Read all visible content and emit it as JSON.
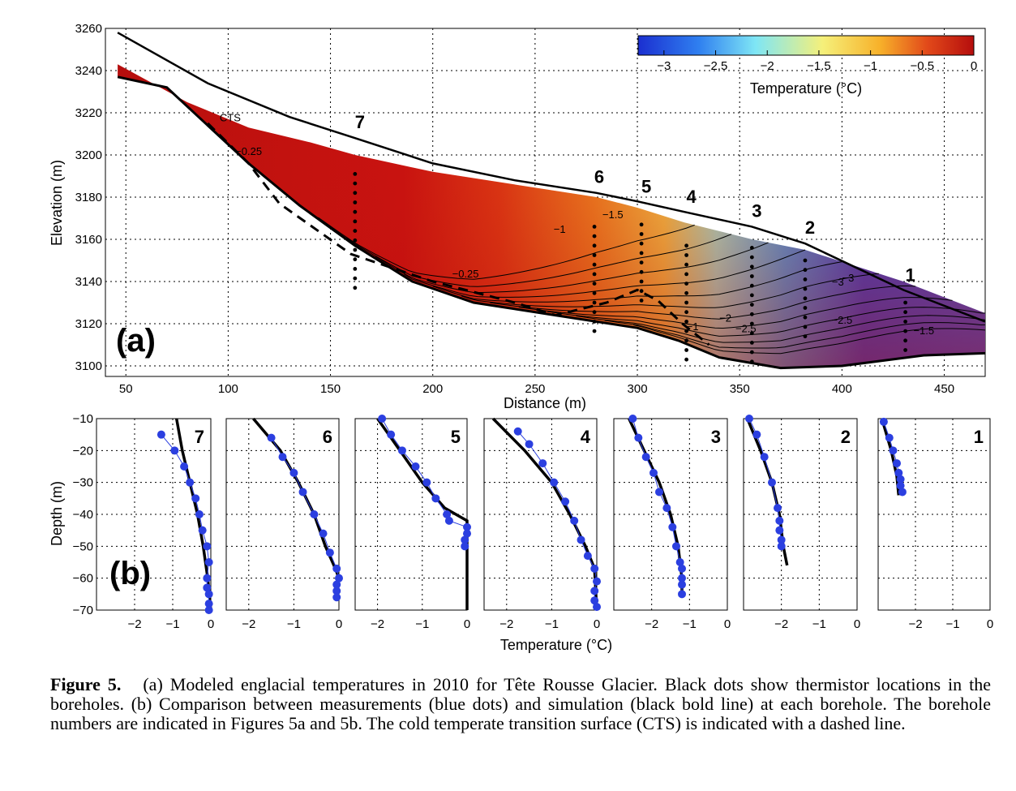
{
  "chart_data": [
    {
      "panel": "(a)",
      "type": "heatmap",
      "description_source": "filled contour section",
      "xlabel": "Distance (m)",
      "ylabel": "Elevation (m)",
      "xlim": [
        40,
        470
      ],
      "ylim": [
        3095,
        3260
      ],
      "xticks": [
        50,
        100,
        150,
        200,
        250,
        300,
        350,
        400,
        450
      ],
      "yticks": [
        3100,
        3120,
        3140,
        3160,
        3180,
        3200,
        3220,
        3240,
        3260
      ],
      "grid": true,
      "colorbar": {
        "label": "Temperature (°C)",
        "ticks": [
          "−3",
          "−2.5",
          "−2",
          "−1.5",
          "−1",
          "−0.5",
          "0"
        ],
        "range": [
          -3.25,
          0
        ],
        "colors": [
          "#1b2fd0",
          "#2f7ff0",
          "#7fe6f5",
          "#f5f07a",
          "#f7b12a",
          "#e24a1a",
          "#b50d0d"
        ],
        "placement": "top-right"
      },
      "contour_labels": [
        "CTS",
        "−0.25",
        "−0.25",
        "−1",
        "−1.5",
        "−2.5",
        "−1.5",
        "−1",
        "−2",
        "−2.5",
        "−3",
        "−3"
      ],
      "surface_2010": [
        [
          46,
          3243
        ],
        [
          80,
          3225
        ],
        [
          110,
          3213
        ],
        [
          140,
          3206
        ],
        [
          162,
          3200
        ],
        [
          200,
          3192
        ],
        [
          240,
          3186
        ],
        [
          280,
          3180
        ],
        [
          300,
          3175
        ],
        [
          323,
          3168
        ],
        [
          356,
          3160
        ],
        [
          382,
          3155
        ],
        [
          430,
          3140
        ],
        [
          470,
          3125
        ]
      ],
      "surface_old": [
        [
          46,
          3258
        ],
        [
          90,
          3234
        ],
        [
          130,
          3218
        ],
        [
          162,
          3208
        ],
        [
          200,
          3196
        ],
        [
          240,
          3188
        ],
        [
          280,
          3182
        ],
        [
          300,
          3178
        ],
        [
          323,
          3173
        ],
        [
          356,
          3166
        ],
        [
          382,
          3158
        ],
        [
          430,
          3136
        ],
        [
          470,
          3121
        ]
      ],
      "bedrock": [
        [
          46,
          3237
        ],
        [
          70,
          3232
        ],
        [
          90,
          3214
        ],
        [
          110,
          3196
        ],
        [
          135,
          3176
        ],
        [
          162,
          3157
        ],
        [
          190,
          3140
        ],
        [
          220,
          3130
        ],
        [
          260,
          3124
        ],
        [
          300,
          3118
        ],
        [
          320,
          3112
        ],
        [
          340,
          3104
        ],
        [
          370,
          3099
        ],
        [
          400,
          3100
        ],
        [
          440,
          3105
        ],
        [
          470,
          3106
        ]
      ],
      "cts_line": [
        [
          90,
          3215
        ],
        [
          110,
          3196
        ],
        [
          125,
          3177
        ],
        [
          160,
          3153
        ],
        [
          200,
          3140
        ],
        [
          240,
          3130
        ],
        [
          260,
          3124
        ],
        [
          285,
          3130
        ],
        [
          300,
          3136
        ],
        [
          310,
          3131
        ],
        [
          322,
          3120
        ],
        [
          335,
          3110
        ]
      ],
      "boreholes": [
        {
          "id": "7",
          "x": 162,
          "top": 3191,
          "bottom": 3136
        },
        {
          "id": "6",
          "x": 279,
          "top": 3166,
          "bottom": 3116
        },
        {
          "id": "5",
          "x": 302,
          "top": 3167,
          "bottom": 3127
        },
        {
          "id": "4",
          "x": 324,
          "top": 3157,
          "bottom": 3103
        },
        {
          "id": "3",
          "x": 356,
          "top": 3156,
          "bottom": 3101
        },
        {
          "id": "2",
          "x": 382,
          "top": 3150,
          "bottom": 3110
        },
        {
          "id": "1",
          "x": 431,
          "top": 3130,
          "bottom": 3105
        }
      ],
      "panel_label": "(a)"
    },
    {
      "panel": "(b)",
      "type": "line",
      "xlabel": "Temperature (°C)",
      "ylabel": "Depth (m)",
      "ylim": [
        -70,
        -10
      ],
      "yticks": [
        "−10",
        "−20",
        "−30",
        "−40",
        "−50",
        "−60",
        "−70"
      ],
      "grid": true,
      "panel_label": "(b)",
      "series_note": "blue dots = measurements, black bold line = simulation",
      "subplots": [
        {
          "id": "7",
          "xlim": [
            -3,
            0
          ],
          "xticks": [
            "−2",
            "−1",
            "0"
          ],
          "measured": [
            [
              -1.3,
              -15
            ],
            [
              -0.95,
              -20
            ],
            [
              -0.7,
              -25
            ],
            [
              -0.55,
              -30
            ],
            [
              -0.4,
              -35
            ],
            [
              -0.3,
              -40
            ],
            [
              -0.22,
              -45
            ],
            [
              -0.1,
              -50
            ],
            [
              -0.05,
              -55
            ],
            [
              -0.1,
              -60
            ],
            [
              -0.1,
              -63
            ],
            [
              -0.05,
              -65
            ],
            [
              -0.05,
              -68
            ],
            [
              -0.05,
              -70
            ]
          ],
          "simulated": [
            [
              -0.9,
              -10
            ],
            [
              -0.75,
              -20
            ],
            [
              -0.55,
              -30
            ],
            [
              -0.35,
              -40
            ],
            [
              -0.2,
              -50
            ],
            [
              -0.08,
              -60
            ],
            [
              0,
              -70
            ]
          ]
        },
        {
          "id": "6",
          "xlim": [
            -2.5,
            0
          ],
          "xticks": [
            "−2",
            "−1",
            "0"
          ],
          "measured": [
            [
              -1.5,
              -16
            ],
            [
              -1.25,
              -22
            ],
            [
              -1.0,
              -27
            ],
            [
              -0.8,
              -33
            ],
            [
              -0.55,
              -40
            ],
            [
              -0.35,
              -46
            ],
            [
              -0.2,
              -52
            ],
            [
              -0.05,
              -57
            ],
            [
              0,
              -60
            ],
            [
              -0.05,
              -62
            ],
            [
              -0.05,
              -64
            ],
            [
              -0.05,
              -66
            ]
          ],
          "simulated": [
            [
              -1.9,
              -10
            ],
            [
              -1.3,
              -20
            ],
            [
              -0.9,
              -30
            ],
            [
              -0.55,
              -40
            ],
            [
              -0.3,
              -50
            ],
            [
              -0.08,
              -57
            ],
            [
              0,
              -60
            ]
          ]
        },
        {
          "id": "5",
          "xlim": [
            -2.5,
            0
          ],
          "xticks": [
            "−2",
            "−1",
            "0"
          ],
          "measured": [
            [
              -1.9,
              -10
            ],
            [
              -1.7,
              -15
            ],
            [
              -1.45,
              -20
            ],
            [
              -1.15,
              -25
            ],
            [
              -0.9,
              -30
            ],
            [
              -0.7,
              -35
            ],
            [
              -0.45,
              -40
            ],
            [
              -0.4,
              -42
            ],
            [
              0,
              -44
            ],
            [
              0,
              -46
            ],
            [
              -0.05,
              -48
            ],
            [
              -0.05,
              -50
            ]
          ],
          "simulated": [
            [
              -2.0,
              -10
            ],
            [
              -1.5,
              -20
            ],
            [
              -1.0,
              -30
            ],
            [
              -0.5,
              -38
            ],
            [
              0,
              -42
            ],
            [
              0,
              -70
            ]
          ]
        },
        {
          "id": "4",
          "xlim": [
            -2.5,
            0
          ],
          "xticks": [
            "−2",
            "−1",
            "0"
          ],
          "measured": [
            [
              -1.75,
              -14
            ],
            [
              -1.5,
              -18
            ],
            [
              -1.2,
              -24
            ],
            [
              -0.95,
              -30
            ],
            [
              -0.7,
              -36
            ],
            [
              -0.5,
              -42
            ],
            [
              -0.35,
              -48
            ],
            [
              -0.2,
              -53
            ],
            [
              -0.05,
              -57
            ],
            [
              0,
              -61
            ],
            [
              -0.05,
              -64
            ],
            [
              -0.05,
              -67
            ],
            [
              0,
              -69
            ]
          ],
          "simulated": [
            [
              -2.3,
              -10
            ],
            [
              -1.6,
              -20
            ],
            [
              -1.0,
              -30
            ],
            [
              -0.6,
              -40
            ],
            [
              -0.25,
              -50
            ],
            [
              -0.05,
              -57
            ],
            [
              0,
              -70
            ]
          ]
        },
        {
          "id": "3",
          "xlim": [
            -3,
            0
          ],
          "xticks": [
            "−2",
            "−1",
            "0"
          ],
          "measured": [
            [
              -2.5,
              -10
            ],
            [
              -2.35,
              -16
            ],
            [
              -2.15,
              -22
            ],
            [
              -1.95,
              -27
            ],
            [
              -1.8,
              -33
            ],
            [
              -1.6,
              -38
            ],
            [
              -1.45,
              -44
            ],
            [
              -1.35,
              -50
            ],
            [
              -1.25,
              -55
            ],
            [
              -1.2,
              -57
            ],
            [
              -1.2,
              -60
            ],
            [
              -1.2,
              -62
            ],
            [
              -1.2,
              -65
            ]
          ],
          "simulated": [
            [
              -2.6,
              -10
            ],
            [
              -2.2,
              -20
            ],
            [
              -1.8,
              -30
            ],
            [
              -1.5,
              -40
            ],
            [
              -1.3,
              -50
            ],
            [
              -1.2,
              -60
            ],
            [
              -1.2,
              -65
            ]
          ]
        },
        {
          "id": "2",
          "xlim": [
            -3,
            0
          ],
          "xticks": [
            "−2",
            "−1",
            "0"
          ],
          "measured": [
            [
              -2.85,
              -10
            ],
            [
              -2.65,
              -15
            ],
            [
              -2.45,
              -22
            ],
            [
              -2.25,
              -30
            ],
            [
              -2.1,
              -38
            ],
            [
              -2.05,
              -42
            ],
            [
              -2.05,
              -45
            ],
            [
              -2.0,
              -48
            ],
            [
              -2.0,
              -50
            ]
          ],
          "simulated": [
            [
              -2.9,
              -10
            ],
            [
              -2.55,
              -20
            ],
            [
              -2.25,
              -30
            ],
            [
              -2.05,
              -40
            ],
            [
              -1.95,
              -50
            ],
            [
              -1.85,
              -56
            ]
          ]
        },
        {
          "id": "1",
          "xlim": [
            -3,
            0
          ],
          "xticks": [
            "−2",
            "−1",
            "0"
          ],
          "measured": [
            [
              -2.85,
              -11
            ],
            [
              -2.7,
              -16
            ],
            [
              -2.6,
              -20
            ],
            [
              -2.5,
              -24
            ],
            [
              -2.45,
              -27
            ],
            [
              -2.4,
              -29
            ],
            [
              -2.4,
              -31
            ],
            [
              -2.35,
              -33
            ]
          ],
          "simulated": [
            [
              -2.9,
              -10
            ],
            [
              -2.65,
              -20
            ],
            [
              -2.5,
              -28
            ],
            [
              -2.45,
              -34
            ]
          ]
        }
      ]
    }
  ],
  "caption": {
    "label": "Figure 5.",
    "text": "(a) Modeled englacial temperatures in 2010 for Tête Rousse Glacier. Black dots show thermistor locations in the boreholes. (b) Comparison between measurements (blue dots) and simulation (black bold line) at each borehole. The borehole numbers are indicated in Figures 5a and 5b. The cold temperate transition surface (CTS) is indicated with a dashed line."
  }
}
